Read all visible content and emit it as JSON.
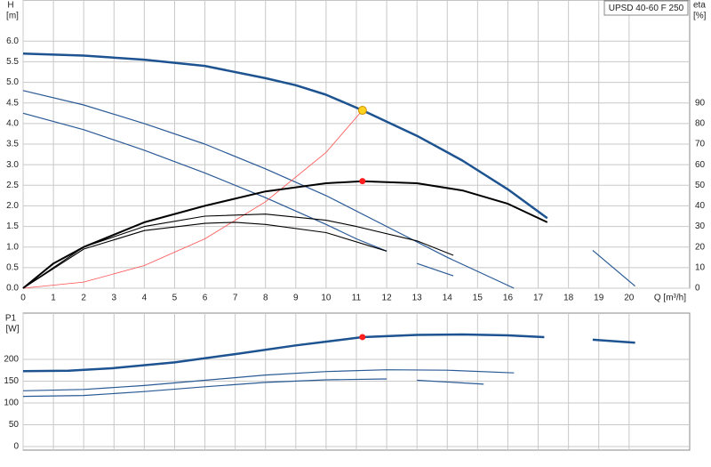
{
  "chart_data": [
    {
      "type": "line",
      "title": "UPSD 40-60 F 250",
      "y_label": "H",
      "y_unit": "[m]",
      "y2_label": "eta",
      "y2_unit": "[%]",
      "x_label": "Q [m³/h]",
      "xlim": [
        0,
        22
      ],
      "xticks": [
        0,
        1,
        2,
        3,
        4,
        5,
        6,
        7,
        8,
        9,
        10,
        11,
        12,
        13,
        14,
        15,
        16,
        17,
        18,
        19,
        20
      ],
      "ylim": [
        0,
        7
      ],
      "yticks": [
        {
          "value": 0,
          "label": "0.0"
        },
        0.5,
        {
          "value": 1,
          "label": "1.0"
        },
        1.5,
        {
          "value": 2,
          "label": "2.0"
        },
        2.5,
        {
          "value": 3,
          "label": "3.0"
        },
        3.5,
        {
          "value": 4,
          "label": "4.0"
        },
        4.5,
        {
          "value": 5,
          "label": "5.0"
        },
        5.5,
        {
          "value": 6,
          "label": "6.0"
        }
      ],
      "y2lim": [
        0,
        140
      ],
      "y2ticks": [
        0,
        10,
        20,
        30,
        40,
        50,
        60,
        70,
        80,
        90
      ],
      "grid": true,
      "series": [
        {
          "color": "#1d5390",
          "width": 2.5,
          "x": [
            0,
            2,
            4,
            6,
            8,
            9,
            10,
            11.2,
            13,
            14.5,
            16,
            17.3
          ],
          "values": [
            5.7,
            5.65,
            5.55,
            5.4,
            5.1,
            4.93,
            4.7,
            4.32,
            3.7,
            3.1,
            2.4,
            1.7
          ]
        },
        {
          "color": "#2a5a96",
          "width": 1.2,
          "x": [
            0,
            2,
            4,
            6,
            8,
            10,
            12,
            14,
            16.2,
            null,
            18.8,
            20.2
          ],
          "values": [
            4.8,
            4.45,
            4.0,
            3.5,
            2.9,
            2.25,
            1.5,
            0.75,
            0,
            null,
            0.92,
            0.05
          ]
        },
        {
          "color": "#2a5a96",
          "width": 1.2,
          "x": [
            0,
            2,
            4,
            6,
            8,
            10,
            11,
            12,
            null,
            13,
            14.2
          ],
          "values": [
            4.25,
            3.85,
            3.35,
            2.8,
            2.2,
            1.55,
            1.2,
            0.9,
            null,
            0.6,
            0.3
          ]
        },
        {
          "color": "#ff5050",
          "width": 0.8,
          "x": [
            0,
            2,
            4,
            6,
            8,
            10,
            11.2
          ],
          "values": [
            0,
            0.15,
            0.55,
            1.2,
            2.1,
            3.3,
            4.32
          ]
        },
        {
          "color": "#000000",
          "width": 2,
          "axis": "y2",
          "x": [
            0,
            1,
            2,
            3,
            4,
            6,
            8,
            10,
            11.2,
            13,
            14.5,
            16,
            17.3
          ],
          "values": [
            0,
            12,
            20,
            26,
            32,
            40,
            47,
            51,
            52,
            51,
            47.5,
            41,
            32
          ]
        },
        {
          "color": "#000000",
          "width": 1.1,
          "axis": "y2",
          "x": [
            0,
            2,
            4,
            6,
            8,
            10,
            11,
            13,
            14.2
          ],
          "values": [
            0,
            20,
            30,
            35,
            36,
            33,
            30,
            23,
            16
          ]
        },
        {
          "color": "#000000",
          "width": 1.1,
          "axis": "y2",
          "x": [
            0,
            2,
            4,
            6,
            7,
            8,
            10,
            12
          ],
          "values": [
            0,
            19,
            28,
            31.5,
            32,
            31,
            27,
            18
          ]
        }
      ],
      "points": [
        {
          "x": 11.2,
          "value": 4.32,
          "color": "#ffd21e"
        },
        {
          "x": 11.2,
          "value": 52,
          "axis": "y2",
          "color": "#ff1e1e"
        }
      ]
    },
    {
      "type": "line",
      "y_label": "P1",
      "y_unit": "[W]",
      "xlim": [
        0,
        22
      ],
      "xticks": [
        0,
        1,
        2,
        3,
        4,
        5,
        6,
        7,
        8,
        9,
        10,
        11,
        12,
        13,
        14,
        15,
        16,
        17,
        18,
        19,
        20
      ],
      "ylim": [
        0,
        306
      ],
      "yticks": [
        0,
        50,
        100,
        150,
        200
      ],
      "grid": true,
      "series": [
        {
          "color": "#1d5390",
          "width": 2.5,
          "x": [
            0,
            1.5,
            3,
            5,
            7,
            9,
            11.2,
            13,
            14.5,
            16,
            17.2,
            null,
            18.8,
            20.2
          ],
          "values": [
            173,
            174,
            180,
            193,
            212,
            232,
            251,
            256,
            257,
            255,
            251,
            null,
            245,
            238
          ]
        },
        {
          "color": "#2a5a96",
          "width": 1.2,
          "x": [
            0,
            2,
            4,
            6,
            8,
            10,
            12,
            14,
            16.2
          ],
          "values": [
            128,
            131,
            140,
            152,
            164,
            172,
            176,
            175,
            169
          ]
        },
        {
          "color": "#2a5a96",
          "width": 1.2,
          "x": [
            0,
            2,
            4,
            6,
            8,
            10,
            12,
            null,
            13,
            15.2
          ],
          "values": [
            115,
            117,
            126,
            137,
            147,
            153,
            155,
            null,
            152,
            143
          ]
        }
      ],
      "points": [
        {
          "x": 11.2,
          "value": 251,
          "color": "#ff1e1e"
        }
      ]
    }
  ]
}
